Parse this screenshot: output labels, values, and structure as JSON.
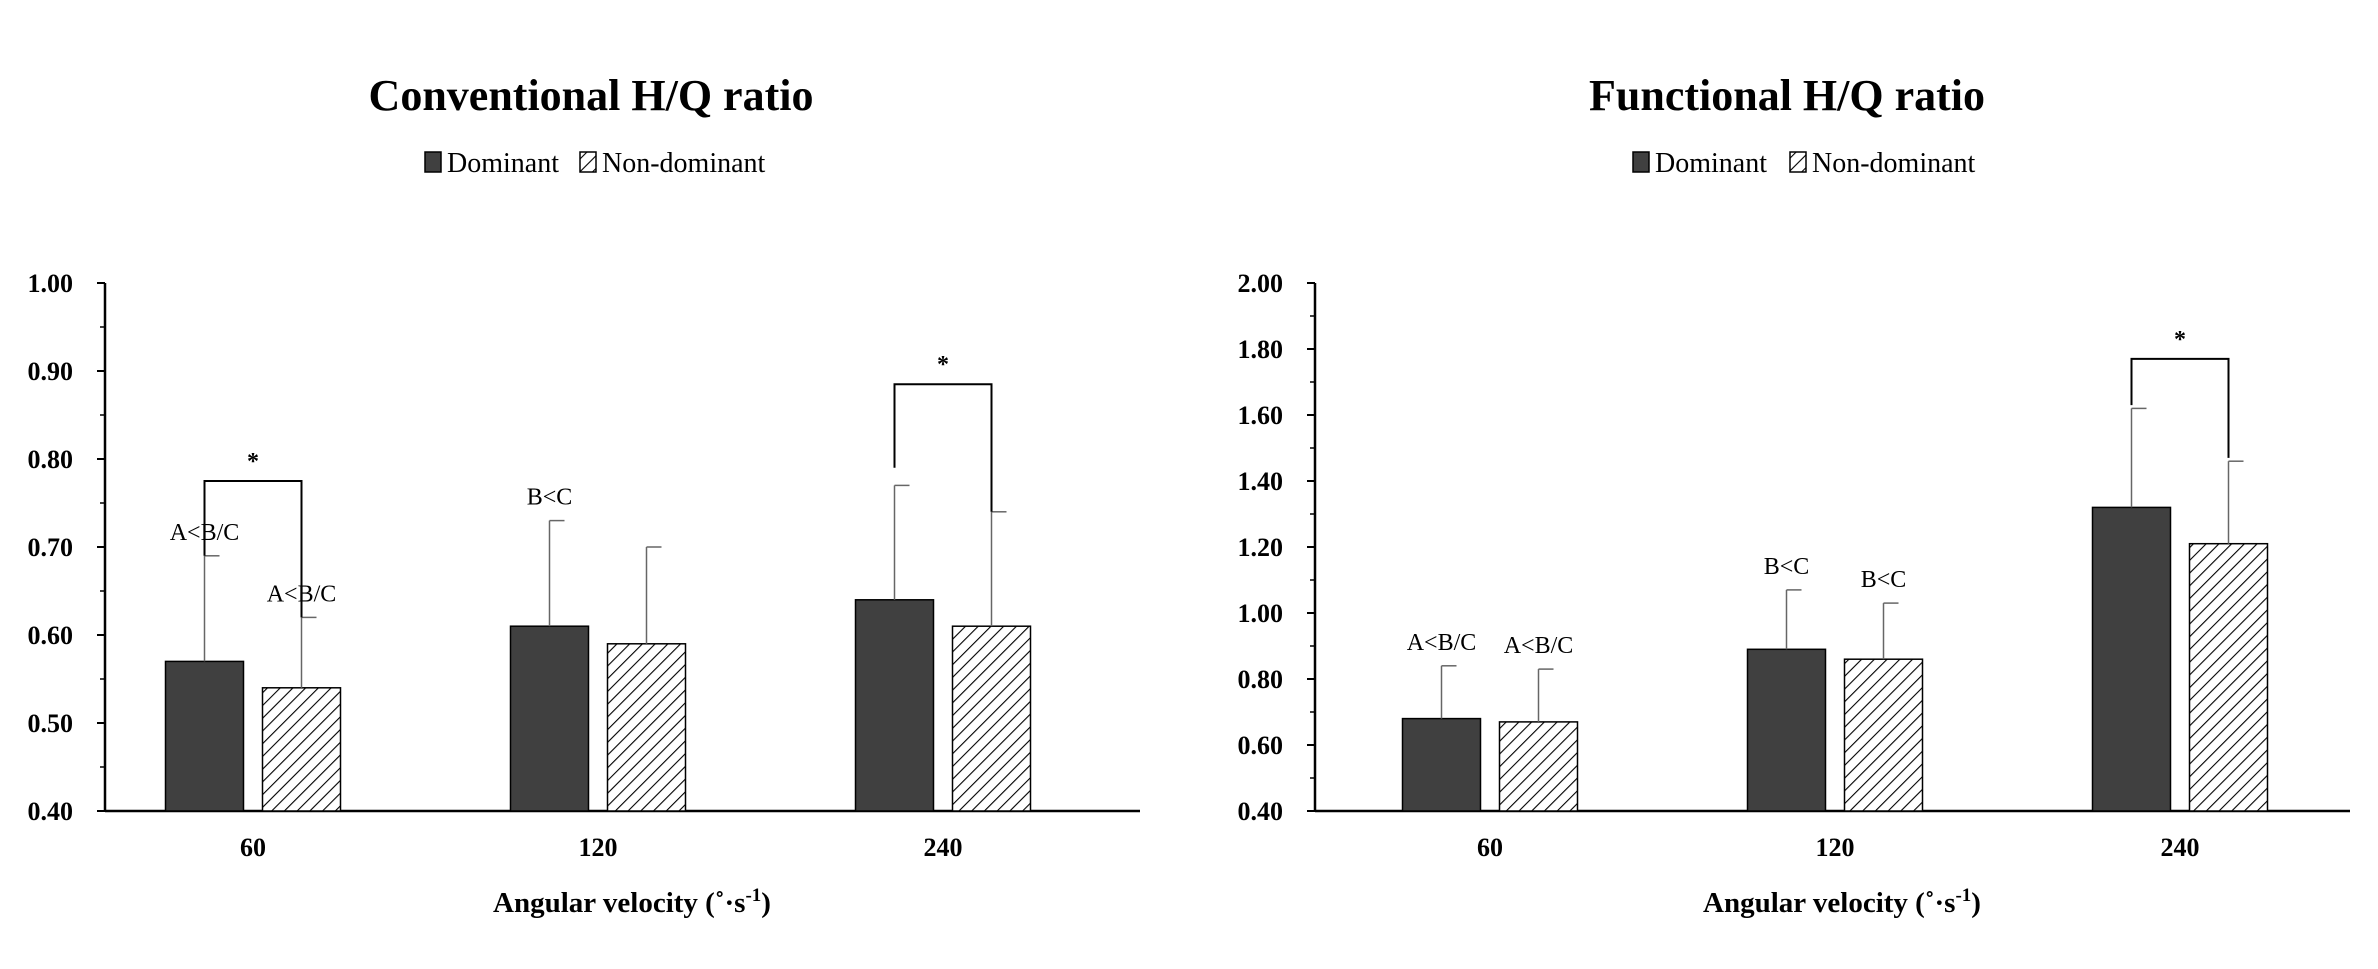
{
  "colors": {
    "dominant": "#404040",
    "non_dominant_hatch": "#000000",
    "axis": "#000000"
  },
  "chart_data": [
    {
      "type": "bar",
      "title": "Conventional H/Q ratio",
      "xlabel": "Angular velocity (˚·s-1)",
      "xlabel_main": "Angular velocity (˚·s",
      "xlabel_sup": "-1",
      "xlabel_close": ")",
      "ylabel": "",
      "ylim": [
        0.4,
        1.0
      ],
      "yticks": [
        "0.40",
        "0.50",
        "0.60",
        "0.70",
        "0.80",
        "0.90",
        "1.00"
      ],
      "categories": [
        "60",
        "120",
        "240"
      ],
      "legend": {
        "placement": "top-center",
        "entries": [
          "Dominant",
          "Non-dominant"
        ]
      },
      "grid": false,
      "series": [
        {
          "name": "Dominant",
          "pattern": "solid",
          "values": [
            0.57,
            0.61,
            0.64
          ],
          "error_upper": [
            0.69,
            0.73,
            0.77
          ],
          "annotations": [
            "A<B/C",
            "B<C",
            ""
          ]
        },
        {
          "name": "Non-dominant",
          "pattern": "hatched",
          "values": [
            0.54,
            0.59,
            0.61
          ],
          "error_upper": [
            0.62,
            0.7,
            0.74
          ],
          "annotations": [
            "A<B/C",
            "",
            ""
          ]
        }
      ],
      "significance": [
        {
          "category": 0,
          "label": "*",
          "bracket_y": 0.775,
          "left_end": 0.69,
          "right_end": 0.62
        },
        {
          "category": 2,
          "label": "*",
          "bracket_y": 0.885,
          "left_end": 0.79,
          "right_end": 0.74
        }
      ]
    },
    {
      "type": "bar",
      "title": "Functional H/Q ratio",
      "xlabel": "Angular velocity (˚·s-1)",
      "xlabel_main": "Angular velocity (˚·s",
      "xlabel_sup": "-1",
      "xlabel_close": ")",
      "ylabel": "",
      "ylim": [
        0.4,
        2.0
      ],
      "yticks": [
        "0.40",
        "0.60",
        "0.80",
        "1.00",
        "1.20",
        "1.40",
        "1.60",
        "1.80",
        "2.00"
      ],
      "categories": [
        "60",
        "120",
        "240"
      ],
      "legend": {
        "placement": "top-center",
        "entries": [
          "Dominant",
          "Non-dominant"
        ]
      },
      "grid": false,
      "series": [
        {
          "name": "Dominant",
          "pattern": "solid",
          "values": [
            0.68,
            0.89,
            1.32
          ],
          "error_upper": [
            0.84,
            1.07,
            1.62
          ],
          "annotations": [
            "A<B/C",
            "B<C",
            ""
          ]
        },
        {
          "name": "Non-dominant",
          "pattern": "hatched",
          "values": [
            0.67,
            0.86,
            1.21
          ],
          "error_upper": [
            0.83,
            1.03,
            1.46
          ],
          "annotations": [
            "A<B/C",
            "B<C",
            ""
          ]
        }
      ],
      "significance": [
        {
          "category": 2,
          "label": "*",
          "bracket_y": 1.77,
          "left_end": 1.63,
          "right_end": 1.47
        }
      ]
    }
  ]
}
